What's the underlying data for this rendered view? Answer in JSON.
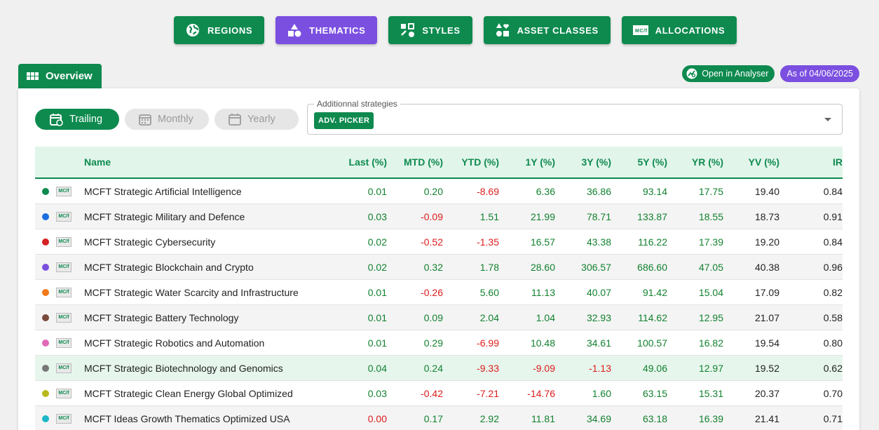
{
  "nav": [
    {
      "label": "REGIONS",
      "icon": "globe-icon",
      "active": false
    },
    {
      "label": "THEMATICS",
      "icon": "shapes-icon",
      "active": true
    },
    {
      "label": "STYLES",
      "icon": "styles-icon",
      "active": false
    },
    {
      "label": "ASSET CLASSES",
      "icon": "asset-classes-icon",
      "active": false
    },
    {
      "label": "ALLOCATIONS",
      "icon": "mcft-logo-icon",
      "active": false
    }
  ],
  "overview": {
    "title": "Overview",
    "open_analyser": "Open in Analyser",
    "as_of": "As of 04/06/2025"
  },
  "period": {
    "trailing": "Trailing",
    "monthly": "Monthly",
    "yearly": "Yearly"
  },
  "strategies": {
    "legend": "Additionnal strategies",
    "chip": "ADV. PICKER"
  },
  "table": {
    "headers": [
      "Name",
      "Last (%)",
      "MTD (%)",
      "YTD (%)",
      "1Y (%)",
      "3Y (%)",
      "5Y (%)",
      "YR (%)",
      "YV (%)",
      "IR"
    ],
    "logo_text": "MC/f",
    "rows": [
      {
        "color": "#0e8a4f",
        "name": "MCFT Strategic Artificial Intelligence",
        "vals": [
          "0.01",
          "0.20",
          "-8.69",
          "6.36",
          "36.86",
          "93.14",
          "17.75",
          "19.40",
          "0.84"
        ]
      },
      {
        "color": "#1a6fe0",
        "name": "MCFT Strategic Military and Defence",
        "vals": [
          "0.03",
          "-0.09",
          "1.51",
          "21.99",
          "78.71",
          "133.87",
          "18.55",
          "18.73",
          "0.91"
        ]
      },
      {
        "color": "#d42222",
        "name": "MCFT Strategic Cybersecurity",
        "vals": [
          "0.02",
          "-0.52",
          "-1.35",
          "16.57",
          "43.38",
          "116.22",
          "17.39",
          "19.20",
          "0.84"
        ]
      },
      {
        "color": "#7b4fe0",
        "name": "MCFT Strategic Blockchain and Crypto",
        "vals": [
          "0.02",
          "0.32",
          "1.78",
          "28.60",
          "306.57",
          "686.60",
          "47.05",
          "40.38",
          "0.96"
        ]
      },
      {
        "color": "#f07a1a",
        "name": "MCFT Strategic Water Scarcity and Infrastructure",
        "vals": [
          "0.01",
          "-0.26",
          "5.60",
          "11.13",
          "40.07",
          "91.42",
          "15.04",
          "17.09",
          "0.82"
        ]
      },
      {
        "color": "#7a4a3c",
        "name": "MCFT Strategic Battery Technology",
        "vals": [
          "0.01",
          "0.09",
          "2.04",
          "1.04",
          "32.93",
          "114.62",
          "12.95",
          "21.07",
          "0.58"
        ]
      },
      {
        "color": "#e06ab8",
        "name": "MCFT Strategic Robotics and Automation",
        "vals": [
          "0.01",
          "0.29",
          "-6.99",
          "10.48",
          "34.61",
          "100.57",
          "16.82",
          "19.54",
          "0.80"
        ]
      },
      {
        "color": "#777777",
        "name": "MCFT Strategic Biotechnology and Genomics",
        "vals": [
          "0.04",
          "0.24",
          "-9.33",
          "-9.09",
          "-1.13",
          "49.06",
          "12.97",
          "19.52",
          "0.62"
        ]
      },
      {
        "color": "#b8b81a",
        "name": "MCFT Strategic Clean Energy Global Optimized",
        "vals": [
          "0.03",
          "-0.42",
          "-7.21",
          "-14.76",
          "1.60",
          "63.15",
          "15.31",
          "20.37",
          "0.70"
        ]
      },
      {
        "color": "#1ab8c8",
        "name": "MCFT Ideas Growth Thematics Optimized USA",
        "vals": [
          "0.00",
          "0.17",
          "2.92",
          "11.81",
          "34.69",
          "63.18",
          "16.39",
          "21.41",
          "0.71"
        ]
      }
    ]
  }
}
